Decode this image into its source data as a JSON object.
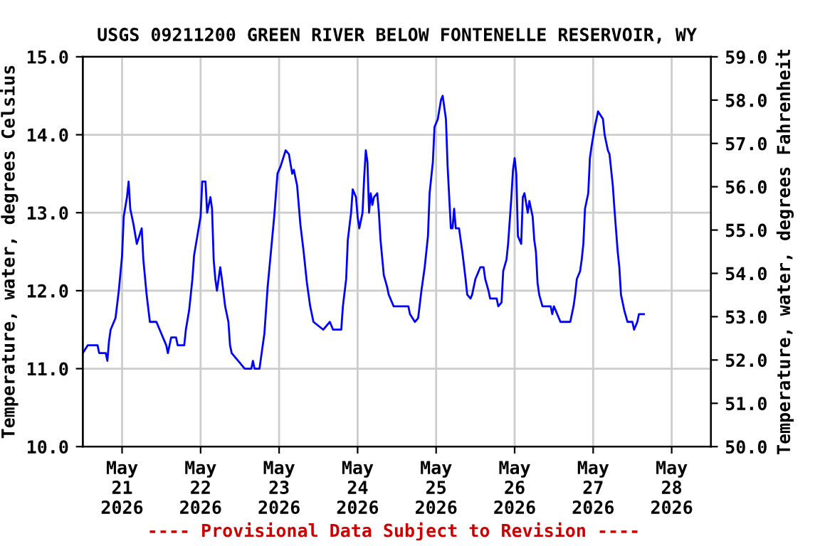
{
  "chart_data": {
    "type": "line",
    "title": "USGS 09211200 GREEN RIVER BELOW FONTENELLE RESERVOIR, WY",
    "ylabel": "Temperature, water, degrees Celsius",
    "y2label": "Temperature, water, degrees Fahrenheit",
    "annotations": [
      "---- Provisional Data Subject to Revision ----"
    ],
    "grid": true,
    "marker": "none",
    "line_style": "solid",
    "xlim": [
      "2026-05-20T12:00",
      "2026-05-28T12:00"
    ],
    "xticks": [
      {
        "value": "2026-05-21",
        "label": "May\n21\n2026"
      },
      {
        "value": "2026-05-22",
        "label": "May\n22\n2026"
      },
      {
        "value": "2026-05-23",
        "label": "May\n23\n2026"
      },
      {
        "value": "2026-05-24",
        "label": "May\n24\n2026"
      },
      {
        "value": "2026-05-25",
        "label": "May\n25\n2026"
      },
      {
        "value": "2026-05-26",
        "label": "May\n26\n2026"
      },
      {
        "value": "2026-05-27",
        "label": "May\n27\n2026"
      },
      {
        "value": "2026-05-28",
        "label": "May\n28\n2026"
      }
    ],
    "ylim": [
      10,
      15
    ],
    "yticks": [
      {
        "value": 10,
        "label": "10.0"
      },
      {
        "value": 11,
        "label": "11.0"
      },
      {
        "value": 12,
        "label": "12.0"
      },
      {
        "value": 13,
        "label": "13.0"
      },
      {
        "value": 14,
        "label": "14.0"
      },
      {
        "value": 15,
        "label": "15.0"
      }
    ],
    "y2lim": [
      50,
      59
    ],
    "y2ticks": [
      {
        "value": 50,
        "label": "50.0"
      },
      {
        "value": 51,
        "label": "51.0"
      },
      {
        "value": 52,
        "label": "52.0"
      },
      {
        "value": 53,
        "label": "53.0"
      },
      {
        "value": 54,
        "label": "54.0"
      },
      {
        "value": 55,
        "label": "55.0"
      },
      {
        "value": 56,
        "label": "56.0"
      },
      {
        "value": 57,
        "label": "57.0"
      },
      {
        "value": 58,
        "label": "58.0"
      },
      {
        "value": 59,
        "label": "59.0"
      }
    ],
    "series": [
      {
        "color": "#0000ff",
        "x": [
          "2026-05-20T12:00",
          "2026-05-20T13:30",
          "2026-05-20T16:30",
          "2026-05-20T17:00",
          "2026-05-20T19:00",
          "2026-05-20T19:30",
          "2026-05-20T20:00",
          "2026-05-20T20:30",
          "2026-05-20T22:00",
          "2026-05-20T23:00",
          "2026-05-21T00:00",
          "2026-05-21T00:30",
          "2026-05-21T01:30",
          "2026-05-21T02:00",
          "2026-05-21T02:30",
          "2026-05-21T03:30",
          "2026-05-21T04:30",
          "2026-05-21T06:00",
          "2026-05-21T06:30",
          "2026-05-21T07:30",
          "2026-05-21T08:30",
          "2026-05-21T10:30",
          "2026-05-21T12:00",
          "2026-05-21T13:30",
          "2026-05-21T14:00",
          "2026-05-21T15:00",
          "2026-05-21T16:30",
          "2026-05-21T17:00",
          "2026-05-21T19:00",
          "2026-05-21T19:30",
          "2026-05-21T20:30",
          "2026-05-21T21:30",
          "2026-05-21T22:00",
          "2026-05-21T23:00",
          "2026-05-22T00:00",
          "2026-05-22T00:30",
          "2026-05-22T01:30",
          "2026-05-22T02:00",
          "2026-05-22T03:00",
          "2026-05-22T03:30",
          "2026-05-22T04:00",
          "2026-05-22T04:30",
          "2026-05-22T05:00",
          "2026-05-22T06:00",
          "2026-05-22T06:30",
          "2026-05-22T07:30",
          "2026-05-22T08:30",
          "2026-05-22T09:00",
          "2026-05-22T09:30",
          "2026-05-22T11:30",
          "2026-05-22T13:30",
          "2026-05-22T15:30",
          "2026-05-22T16:00",
          "2026-05-22T16:30",
          "2026-05-22T18:00",
          "2026-05-22T18:30",
          "2026-05-22T19:30",
          "2026-05-22T20:30",
          "2026-05-22T21:30",
          "2026-05-22T22:30",
          "2026-05-22T23:30",
          "2026-05-23T00:30",
          "2026-05-23T02:00",
          "2026-05-23T03:00",
          "2026-05-23T04:00",
          "2026-05-23T04:30",
          "2026-05-23T05:30",
          "2026-05-23T06:30",
          "2026-05-23T07:30",
          "2026-05-23T08:30",
          "2026-05-23T09:30",
          "2026-05-23T10:30",
          "2026-05-23T13:30",
          "2026-05-23T15:30",
          "2026-05-23T16:30",
          "2026-05-23T19:00",
          "2026-05-23T19:30",
          "2026-05-23T20:30",
          "2026-05-23T21:00",
          "2026-05-23T22:00",
          "2026-05-23T22:30",
          "2026-05-23T23:30",
          "2026-05-24T00:00",
          "2026-05-24T00:30",
          "2026-05-24T01:30",
          "2026-05-24T02:00",
          "2026-05-24T02:30",
          "2026-05-24T03:00",
          "2026-05-24T03:30",
          "2026-05-24T04:00",
          "2026-05-24T04:30",
          "2026-05-24T05:00",
          "2026-05-24T06:00",
          "2026-05-24T06:30",
          "2026-05-24T07:00",
          "2026-05-24T08:00",
          "2026-05-24T09:00",
          "2026-05-24T09:30",
          "2026-05-24T11:00",
          "2026-05-24T15:30",
          "2026-05-24T16:00",
          "2026-05-24T17:30",
          "2026-05-24T18:30",
          "2026-05-24T19:30",
          "2026-05-24T20:30",
          "2026-05-24T21:30",
          "2026-05-24T22:00",
          "2026-05-24T23:00",
          "2026-05-24T23:30",
          "2026-05-25T00:30",
          "2026-05-25T01:30",
          "2026-05-25T02:00",
          "2026-05-25T03:00",
          "2026-05-25T03:30",
          "2026-05-25T04:30",
          "2026-05-25T05:00",
          "2026-05-25T05:30",
          "2026-05-25T06:00",
          "2026-05-25T07:00",
          "2026-05-25T08:00",
          "2026-05-25T09:00",
          "2026-05-25T09:30",
          "2026-05-25T10:30",
          "2026-05-25T11:00",
          "2026-05-25T12:00",
          "2026-05-25T13:30",
          "2026-05-25T14:30",
          "2026-05-25T15:00",
          "2026-05-25T16:00",
          "2026-05-25T16:30",
          "2026-05-25T18:30",
          "2026-05-25T19:00",
          "2026-05-25T20:00",
          "2026-05-25T20:30",
          "2026-05-25T21:30",
          "2026-05-25T22:00",
          "2026-05-25T23:00",
          "2026-05-25T23:30",
          "2026-05-26T00:00",
          "2026-05-26T00:30",
          "2026-05-26T01:00",
          "2026-05-26T02:00",
          "2026-05-26T02:30",
          "2026-05-26T03:00",
          "2026-05-26T04:00",
          "2026-05-26T04:30",
          "2026-05-26T05:30",
          "2026-05-26T06:00",
          "2026-05-26T06:30",
          "2026-05-26T07:00",
          "2026-05-26T07:30",
          "2026-05-26T08:30",
          "2026-05-26T11:00",
          "2026-05-26T11:30",
          "2026-05-26T12:00",
          "2026-05-26T13:00",
          "2026-05-26T14:00",
          "2026-05-26T17:00",
          "2026-05-26T18:00",
          "2026-05-26T18:30",
          "2026-05-26T19:00",
          "2026-05-26T20:00",
          "2026-05-26T20:30",
          "2026-05-26T21:00",
          "2026-05-26T21:30",
          "2026-05-26T22:30",
          "2026-05-26T23:00",
          "2026-05-26T23:30",
          "2026-05-27T00:30",
          "2026-05-27T01:00",
          "2026-05-27T01:30",
          "2026-05-27T03:00",
          "2026-05-27T03:30",
          "2026-05-27T04:30",
          "2026-05-27T05:00",
          "2026-05-27T06:00",
          "2026-05-27T06:30",
          "2026-05-27T07:30",
          "2026-05-27T08:00",
          "2026-05-27T08:30",
          "2026-05-27T09:30",
          "2026-05-27T10:30",
          "2026-05-27T12:00",
          "2026-05-27T12:30",
          "2026-05-27T13:30",
          "2026-05-27T14:00",
          "2026-05-27T15:30"
        ],
        "values": [
          11.2,
          11.3,
          11.3,
          11.2,
          11.2,
          11.1,
          11.35,
          11.5,
          11.65,
          12.0,
          12.45,
          12.95,
          13.2,
          13.4,
          13.05,
          12.85,
          12.6,
          12.8,
          12.4,
          11.95,
          11.6,
          11.6,
          11.45,
          11.3,
          11.2,
          11.4,
          11.4,
          11.3,
          11.3,
          11.5,
          11.75,
          12.15,
          12.45,
          12.7,
          12.95,
          13.4,
          13.4,
          13.0,
          13.2,
          13.05,
          12.4,
          12.15,
          12.0,
          12.3,
          12.15,
          11.8,
          11.6,
          11.3,
          11.2,
          11.1,
          11.0,
          11.0,
          11.1,
          11.0,
          11.0,
          11.15,
          11.45,
          12.05,
          12.5,
          12.95,
          13.5,
          13.6,
          13.8,
          13.75,
          13.5,
          13.55,
          13.35,
          12.85,
          12.5,
          12.1,
          11.8,
          11.6,
          11.5,
          11.6,
          11.5,
          11.5,
          11.8,
          12.15,
          12.65,
          13.0,
          13.3,
          13.2,
          12.95,
          12.8,
          13.0,
          13.45,
          13.8,
          13.65,
          13.0,
          13.25,
          13.1,
          13.2,
          13.25,
          13.0,
          12.65,
          12.2,
          12.05,
          11.95,
          11.8,
          11.8,
          11.7,
          11.6,
          11.65,
          12.0,
          12.3,
          12.7,
          13.25,
          13.65,
          14.1,
          14.2,
          14.45,
          14.5,
          14.2,
          13.6,
          12.8,
          12.8,
          13.05,
          12.8,
          12.8,
          12.5,
          12.15,
          11.95,
          11.9,
          11.95,
          12.15,
          12.3,
          12.3,
          12.15,
          12.0,
          11.9,
          11.9,
          11.8,
          11.85,
          12.25,
          12.4,
          12.6,
          13.2,
          13.55,
          13.7,
          13.5,
          12.7,
          12.6,
          13.2,
          13.25,
          13.0,
          13.15,
          12.95,
          12.65,
          12.5,
          12.1,
          11.95,
          11.8,
          11.8,
          11.7,
          11.8,
          11.7,
          11.6,
          11.6,
          11.8,
          11.95,
          12.15,
          12.25,
          12.4,
          12.6,
          13.05,
          13.25,
          13.7,
          13.85,
          14.1,
          14.2,
          14.3,
          14.2,
          14.0,
          13.8,
          13.75,
          13.35,
          13.05,
          12.5,
          12.3,
          11.95,
          11.75,
          11.6,
          11.6,
          11.5,
          11.6,
          11.7,
          11.7
        ]
      }
    ]
  }
}
